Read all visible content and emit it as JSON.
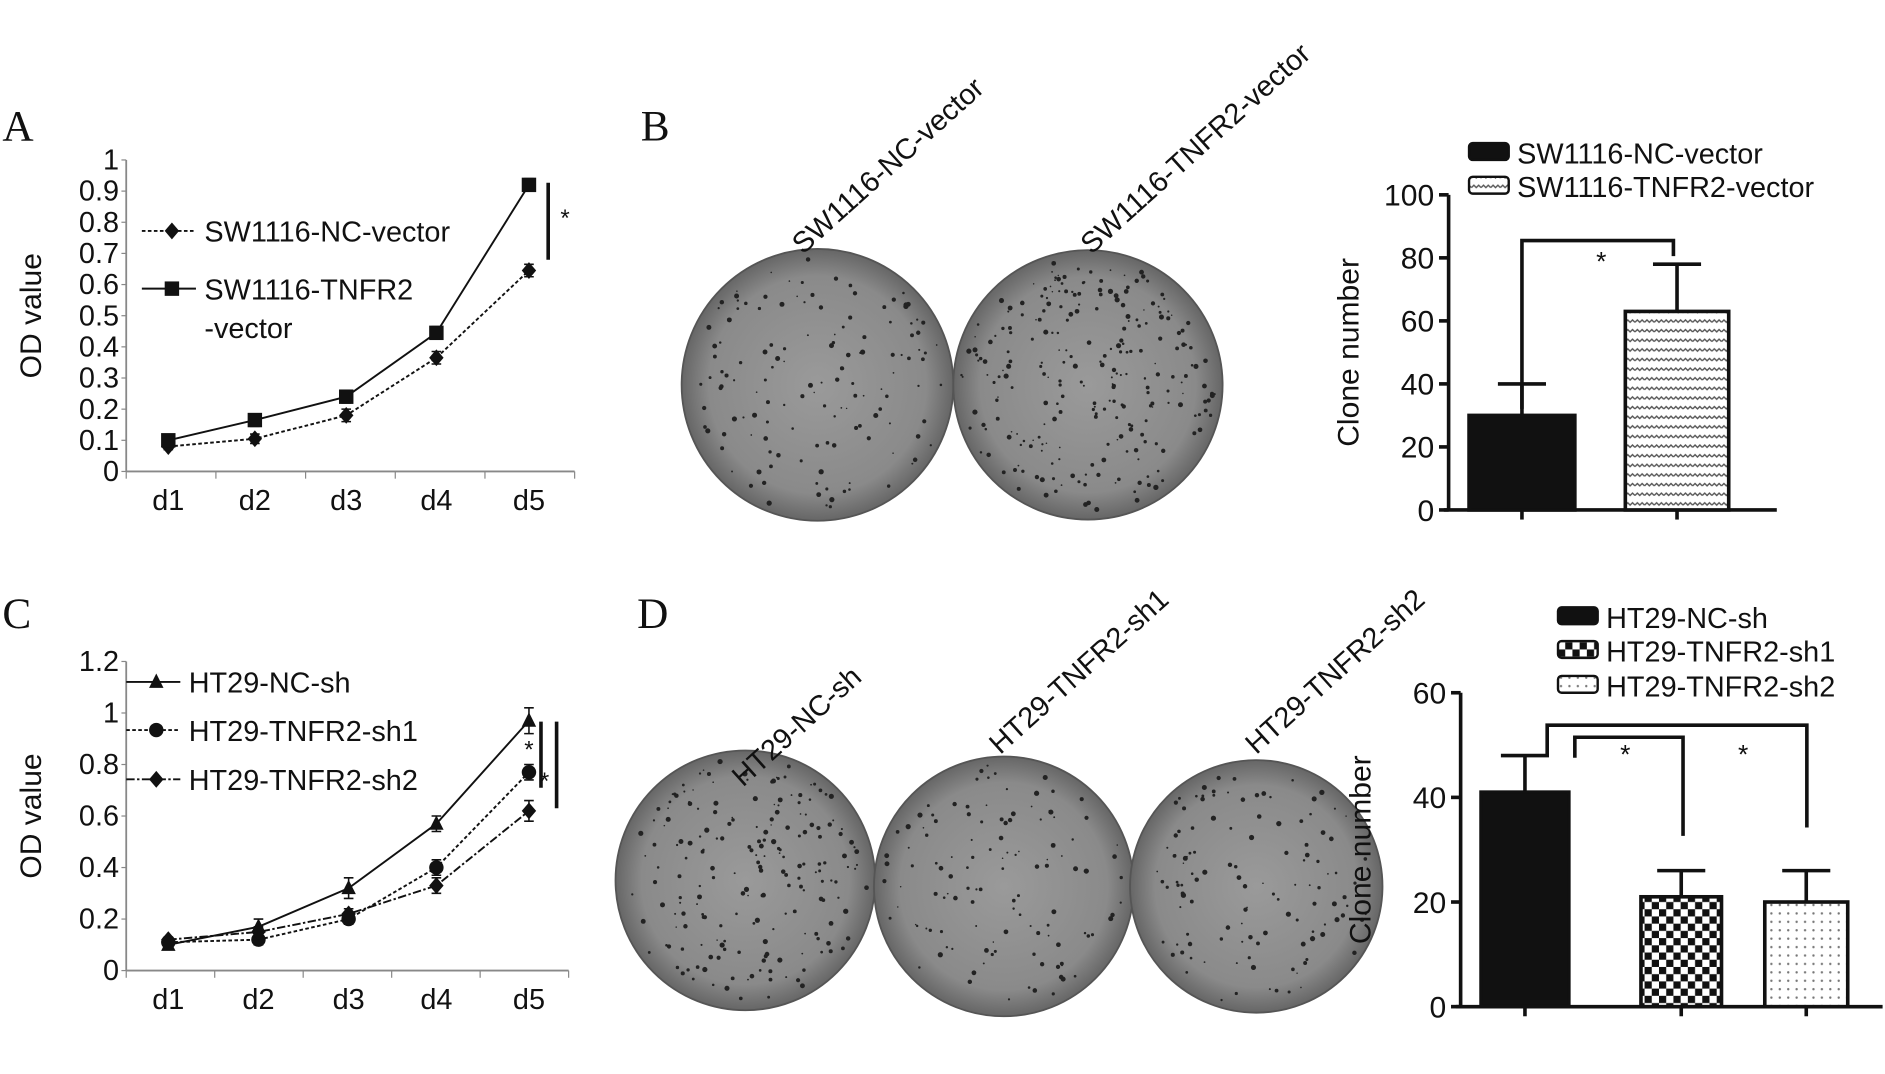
{
  "panels": {
    "a": "A",
    "b": "B",
    "c": "C",
    "d": "D"
  },
  "colors": {
    "ink": "#111111",
    "dish": "#8c8c8c",
    "dish_dark": "#5a5a5a",
    "pattern_bg": "#ffffff"
  },
  "dish_labels": {
    "b": [
      "SW1116-NC-vector",
      "SW1116-TNFR2-vector"
    ],
    "d": [
      "HT29-NC-sh",
      "HT29-TNFR2-sh1",
      "HT29-TNFR2-sh2"
    ]
  },
  "chart_data": [
    {
      "id": "A",
      "type": "line",
      "ylabel": "OD value",
      "xlabel": "",
      "categories": [
        "d1",
        "d2",
        "d3",
        "d4",
        "d5"
      ],
      "ylim": [
        0,
        1
      ],
      "yticks": [
        "0",
        "0.1",
        "0.2",
        "0.3",
        "0.4",
        "0.5",
        "0.6",
        "0.7",
        "0.8",
        "0.9",
        "1"
      ],
      "legend": "top-left",
      "grid": false,
      "series": [
        {
          "name": "SW1116-NC-vector",
          "legend_lines": [
            "SW1116-NC-vector"
          ],
          "marker": "diamond",
          "line": "dotted",
          "values": [
            0.08,
            0.105,
            0.18,
            0.365,
            0.645
          ],
          "error": [
            0.01,
            0.015,
            0.02,
            0.02,
            0.02
          ]
        },
        {
          "name": "SW1116-TNFR2-vector",
          "legend_lines": [
            "SW1116-TNFR2",
            "-vector"
          ],
          "marker": "square",
          "line": "solid",
          "values": [
            0.1,
            0.165,
            0.24,
            0.445,
            0.92
          ],
          "error": [
            0.01,
            0.02,
            0.02,
            0.02,
            0.02
          ]
        }
      ],
      "annotations": [
        "*"
      ]
    },
    {
      "id": "B",
      "type": "bar",
      "ylabel": "Clone number",
      "xlabel": "",
      "categories": [
        "SW1116-NC-vector",
        "SW1116-TNFR2-vector"
      ],
      "ylim": [
        0,
        100
      ],
      "yticks": [
        "0",
        "20",
        "40",
        "60",
        "80",
        "100"
      ],
      "legend": "top-right",
      "grid": false,
      "series": [
        {
          "name": "SW1116-NC-vector",
          "pattern": "solid",
          "value": 30,
          "error": 10
        },
        {
          "name": "SW1116-TNFR2-vector",
          "pattern": "dots",
          "value": 63,
          "error": 15
        }
      ],
      "annotations": [
        "*"
      ]
    },
    {
      "id": "C",
      "type": "line",
      "ylabel": "OD value",
      "xlabel": "",
      "categories": [
        "d1",
        "d2",
        "d3",
        "d4",
        "d5"
      ],
      "ylim": [
        0,
        1.2
      ],
      "yticks": [
        "0",
        "0.2",
        "0.4",
        "0.6",
        "0.8",
        "1",
        "1.2"
      ],
      "legend": "top-left",
      "grid": false,
      "series": [
        {
          "name": "HT29-NC-sh",
          "legend_lines": [
            "HT29-NC-sh"
          ],
          "marker": "triangle",
          "line": "solid",
          "values": [
            0.1,
            0.17,
            0.32,
            0.57,
            0.97
          ],
          "error": [
            0.01,
            0.03,
            0.04,
            0.03,
            0.05
          ]
        },
        {
          "name": "HT29-TNFR2-sh1",
          "legend_lines": [
            "HT29-TNFR2-sh1"
          ],
          "marker": "circle",
          "line": "dotted",
          "values": [
            0.11,
            0.12,
            0.2,
            0.4,
            0.77
          ],
          "error": [
            0.01,
            0.02,
            0.02,
            0.03,
            0.03
          ]
        },
        {
          "name": "HT29-TNFR2-sh2",
          "legend_lines": [
            "HT29-TNFR2-sh2"
          ],
          "marker": "diamond",
          "line": "dashdot",
          "values": [
            0.12,
            0.15,
            0.22,
            0.33,
            0.62
          ],
          "error": [
            0.01,
            0.02,
            0.02,
            0.03,
            0.04
          ]
        }
      ],
      "annotations": [
        "*",
        "*"
      ]
    },
    {
      "id": "D",
      "type": "bar",
      "ylabel": "Clone number",
      "xlabel": "",
      "categories": [
        "HT29-NC-sh",
        "HT29-TNFR2-sh1",
        "HT29-TNFR2-sh2"
      ],
      "ylim": [
        0,
        60
      ],
      "yticks": [
        "0",
        "20",
        "40",
        "60"
      ],
      "legend": "top-right",
      "grid": false,
      "series": [
        {
          "name": "HT29-NC-sh",
          "pattern": "solid",
          "value": 41,
          "error": 7
        },
        {
          "name": "HT29-TNFR2-sh1",
          "pattern": "checker",
          "value": 21,
          "error": 5
        },
        {
          "name": "HT29-TNFR2-sh2",
          "pattern": "finedots",
          "value": 20,
          "error": 6
        }
      ],
      "annotations": [
        "*",
        "*"
      ]
    }
  ]
}
